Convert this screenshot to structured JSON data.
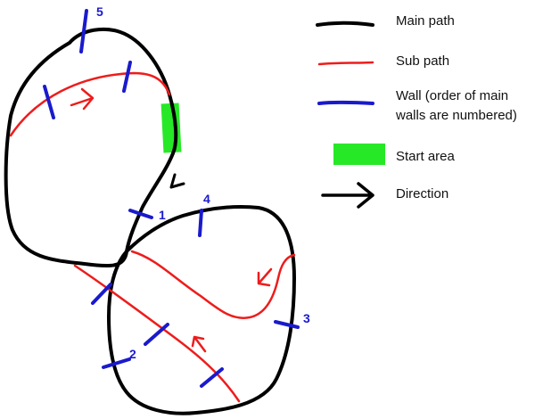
{
  "colors": {
    "main_path": "#000000",
    "sub_path": "#ee1c1c",
    "wall": "#1a1acc",
    "start_area": "#27e827",
    "direction": "#000000",
    "background": "#ffffff"
  },
  "legend": {
    "main_path": "Main path",
    "sub_path": "Sub path",
    "wall_line1": "Wall (order of main",
    "wall_line2": "walls are numbered)",
    "start_area": "Start area",
    "direction": "Direction"
  },
  "wall_numbers": {
    "w1": "1",
    "w2": "2",
    "w3": "3",
    "w4": "4",
    "w5": "5"
  },
  "icons": {
    "direction": "right-arrow-icon",
    "sub_path_arrow": "chevron-arrow-icon"
  }
}
